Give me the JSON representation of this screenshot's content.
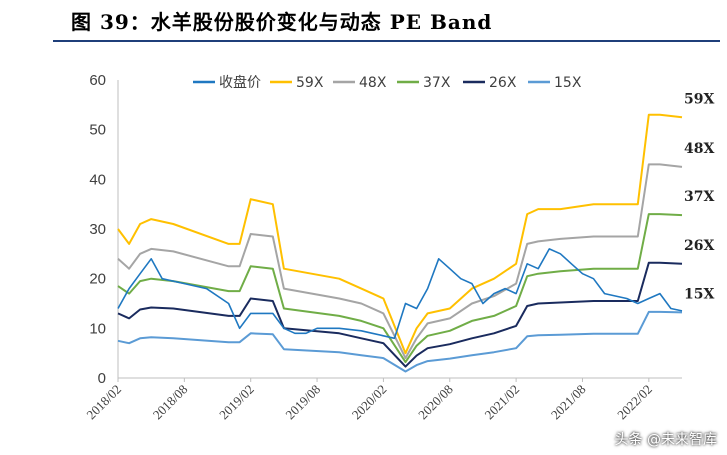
{
  "title": "图 39：水羊股份股价变化与动态 PE Band",
  "watermark": "头条 @未来智库",
  "colors": {
    "title_rule": "#1f3f7a",
    "price": "#1f78c1",
    "59X": "#ffc000",
    "48X": "#a5a5a5",
    "37X": "#70ad47",
    "26X": "#1a2b5e",
    "15X": "#5b9bd5"
  },
  "chart_data": {
    "type": "line",
    "title": "",
    "xlabel": "",
    "ylabel": "",
    "ylim": [
      0,
      60
    ],
    "yticks": [
      0,
      10,
      20,
      30,
      40,
      50,
      60
    ],
    "xlim": [
      "2018-02",
      "2022-05"
    ],
    "xticks": [
      "2018/02",
      "2018/08",
      "2019/02",
      "2019/08",
      "2020/02",
      "2020/08",
      "2021/02",
      "2021/08",
      "2022/02"
    ],
    "grid": false,
    "legend_position": "top",
    "legend": [
      "收盘价",
      "59X",
      "48X",
      "37X",
      "26X",
      "15X"
    ],
    "end_labels": [
      "59X",
      "48X",
      "37X",
      "26X",
      "15X"
    ],
    "series": [
      {
        "name": "收盘价",
        "x": [
          "2018-02",
          "2018-03",
          "2018-04",
          "2018-05",
          "2018-06",
          "2018-08",
          "2018-10",
          "2018-12",
          "2019-01",
          "2019-02",
          "2019-04",
          "2019-05",
          "2019-06",
          "2019-07",
          "2019-08",
          "2019-10",
          "2019-12",
          "2020-01",
          "2020-02",
          "2020-03",
          "2020-04",
          "2020-05",
          "2020-06",
          "2020-07",
          "2020-08",
          "2020-09",
          "2020-10",
          "2020-11",
          "2020-12",
          "2021-01",
          "2021-02",
          "2021-03",
          "2021-04",
          "2021-05",
          "2021-06",
          "2021-07",
          "2021-08",
          "2021-09",
          "2021-10",
          "2021-12",
          "2022-01",
          "2022-02",
          "2022-03",
          "2022-04",
          "2022-05"
        ],
        "values": [
          14,
          18,
          21,
          24,
          20,
          19,
          18,
          15,
          10,
          13,
          13,
          10,
          9,
          9,
          10,
          10,
          9.5,
          9,
          8.5,
          8,
          15,
          14,
          18,
          24,
          22,
          20,
          19,
          15,
          17,
          18,
          17,
          23,
          22,
          26,
          25,
          23,
          21,
          20,
          17,
          16,
          15,
          16,
          17,
          14,
          13.5
        ]
      },
      {
        "name": "59X",
        "x": [
          "2018-02",
          "2018-03",
          "2018-04",
          "2018-05",
          "2018-07",
          "2018-12",
          "2019-01",
          "2019-02",
          "2019-04",
          "2019-05",
          "2019-10",
          "2019-12",
          "2020-02",
          "2020-04",
          "2020-05",
          "2020-06",
          "2020-08",
          "2020-10",
          "2020-12",
          "2021-02",
          "2021-03",
          "2021-04",
          "2021-06",
          "2021-09",
          "2022-01",
          "2022-02",
          "2022-03",
          "2022-05"
        ],
        "values": [
          30,
          27,
          31,
          32,
          31,
          27,
          27,
          36,
          35,
          22,
          20,
          18,
          16,
          5,
          10,
          13,
          14,
          18,
          20,
          23,
          33,
          34,
          34,
          35,
          35,
          53,
          53,
          52.5
        ]
      },
      {
        "name": "48X",
        "x": [
          "2018-02",
          "2018-03",
          "2018-04",
          "2018-05",
          "2018-07",
          "2018-12",
          "2019-01",
          "2019-02",
          "2019-04",
          "2019-05",
          "2019-10",
          "2019-12",
          "2020-02",
          "2020-04",
          "2020-05",
          "2020-06",
          "2020-08",
          "2020-10",
          "2020-12",
          "2021-02",
          "2021-03",
          "2021-04",
          "2021-06",
          "2021-09",
          "2022-01",
          "2022-02",
          "2022-03",
          "2022-05"
        ],
        "values": [
          24,
          22,
          25,
          26,
          25.5,
          22.5,
          22.5,
          29,
          28.5,
          18,
          16,
          15,
          13,
          4,
          8,
          11,
          12,
          15,
          16.5,
          19,
          27,
          27.5,
          28,
          28.5,
          28.5,
          43,
          43,
          42.5
        ]
      },
      {
        "name": "37X",
        "x": [
          "2018-02",
          "2018-03",
          "2018-04",
          "2018-05",
          "2018-07",
          "2018-12",
          "2019-01",
          "2019-02",
          "2019-04",
          "2019-05",
          "2019-10",
          "2019-12",
          "2020-02",
          "2020-04",
          "2020-05",
          "2020-06",
          "2020-08",
          "2020-10",
          "2020-12",
          "2021-02",
          "2021-03",
          "2021-04",
          "2021-06",
          "2021-09",
          "2022-01",
          "2022-02",
          "2022-03",
          "2022-05"
        ],
        "values": [
          18.5,
          17,
          19.5,
          20,
          19.5,
          17.5,
          17.5,
          22.5,
          22,
          14,
          12.5,
          11.5,
          10,
          3.2,
          6.5,
          8.5,
          9.5,
          11.5,
          12.5,
          14.5,
          20.5,
          21,
          21.5,
          22,
          22,
          33,
          33,
          32.8
        ]
      },
      {
        "name": "26X",
        "x": [
          "2018-02",
          "2018-03",
          "2018-04",
          "2018-05",
          "2018-07",
          "2018-12",
          "2019-01",
          "2019-02",
          "2019-04",
          "2019-05",
          "2019-10",
          "2019-12",
          "2020-02",
          "2020-04",
          "2020-05",
          "2020-06",
          "2020-08",
          "2020-10",
          "2020-12",
          "2021-02",
          "2021-03",
          "2021-04",
          "2021-06",
          "2021-09",
          "2022-01",
          "2022-02",
          "2022-03",
          "2022-05"
        ],
        "values": [
          13,
          12,
          13.8,
          14.2,
          14,
          12.5,
          12.5,
          16,
          15.5,
          10,
          9,
          8,
          7,
          2.3,
          4.5,
          6,
          6.8,
          8,
          9,
          10.5,
          14.5,
          15,
          15.2,
          15.5,
          15.5,
          23.2,
          23.2,
          23
        ]
      },
      {
        "name": "15X",
        "x": [
          "2018-02",
          "2018-03",
          "2018-04",
          "2018-05",
          "2018-07",
          "2018-12",
          "2019-01",
          "2019-02",
          "2019-04",
          "2019-05",
          "2019-10",
          "2019-12",
          "2020-02",
          "2020-04",
          "2020-05",
          "2020-06",
          "2020-08",
          "2020-10",
          "2020-12",
          "2021-02",
          "2021-03",
          "2021-04",
          "2021-06",
          "2021-09",
          "2022-01",
          "2022-02",
          "2022-03",
          "2022-05"
        ],
        "values": [
          7.5,
          7,
          8,
          8.2,
          8,
          7.2,
          7.2,
          9,
          8.8,
          5.8,
          5.2,
          4.6,
          4,
          1.3,
          2.6,
          3.4,
          3.9,
          4.6,
          5.2,
          6,
          8.4,
          8.6,
          8.7,
          8.9,
          8.9,
          13.3,
          13.3,
          13.2
        ]
      }
    ]
  }
}
